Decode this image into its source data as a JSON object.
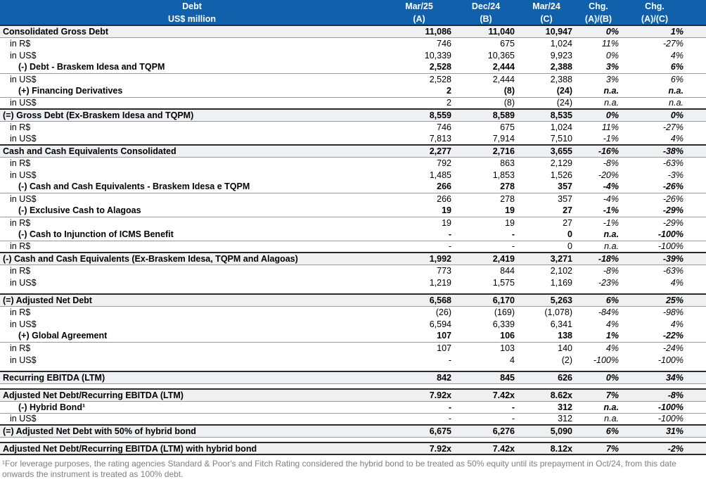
{
  "colors": {
    "header_blue": "#1060AC",
    "header_text": "#FFFFFF",
    "section_row_bg": "#EFF0F2",
    "dark_border": "#2B2B2B",
    "light_border": "#9A9A9A",
    "footnote_text": "#7F7F7F"
  },
  "header": {
    "label_line1": "Debt",
    "label_line2": "US$ million",
    "columns": [
      {
        "line1": "Mar/25",
        "line2": "(A)"
      },
      {
        "line1": "Dec/24",
        "line2": "(B)"
      },
      {
        "line1": "Mar/24",
        "line2": "(C)"
      },
      {
        "line1": "Chg.",
        "line2": "(A)/(B)"
      },
      {
        "line1": "Chg.",
        "line2": "(A)/(C)"
      }
    ]
  },
  "rows": [
    {
      "type": "section",
      "label": "Consolidated Gross Debt",
      "a": "11,086",
      "b": "11,040",
      "c": "10,947",
      "chg_ab": "0%",
      "chg_ac": "1%"
    },
    {
      "type": "plain",
      "label": "in R$",
      "a": "746",
      "b": "675",
      "c": "1,024",
      "chg_ab": "11%",
      "chg_ac": "-27%"
    },
    {
      "type": "plain",
      "label": "in US$",
      "a": "10,339",
      "b": "10,365",
      "c": "9,923",
      "chg_ab": "0%",
      "chg_ac": "4%"
    },
    {
      "type": "subbold",
      "label": "(-) Debt - Braskem Idesa and TQPM",
      "a": "2,528",
      "b": "2,444",
      "c": "2,388",
      "chg_ab": "3%",
      "chg_ac": "6%"
    },
    {
      "type": "plain",
      "label": "in US$",
      "a": "2,528",
      "b": "2,444",
      "c": "2,388",
      "chg_ab": "3%",
      "chg_ac": "6%"
    },
    {
      "type": "subbold",
      "label": "(+) Financing Derivatives",
      "a": "2",
      "b": "(8)",
      "c": "(24)",
      "chg_ab": "n.a.",
      "chg_ac": "n.a."
    },
    {
      "type": "plain",
      "label": "in US$",
      "a": "2",
      "b": "(8)",
      "c": "(24)",
      "chg_ab": "n.a.",
      "chg_ac": "n.a."
    },
    {
      "type": "section",
      "label": "(=) Gross Debt (Ex-Braskem Idesa and TQPM)",
      "a": "8,559",
      "b": "8,589",
      "c": "8,535",
      "chg_ab": "0%",
      "chg_ac": "0%"
    },
    {
      "type": "plain",
      "label": "in R$",
      "a": "746",
      "b": "675",
      "c": "1,024",
      "chg_ab": "11%",
      "chg_ac": "-27%"
    },
    {
      "type": "plain",
      "label": "in US$",
      "a": "7,813",
      "b": "7,914",
      "c": "7,510",
      "chg_ab": "-1%",
      "chg_ac": "4%"
    },
    {
      "type": "section",
      "label": "Cash and Cash Equivalents Consolidated",
      "a": "2,277",
      "b": "2,716",
      "c": "3,655",
      "chg_ab": "-16%",
      "chg_ac": "-38%"
    },
    {
      "type": "plain",
      "label": "in R$",
      "a": "792",
      "b": "863",
      "c": "2,129",
      "chg_ab": "-8%",
      "chg_ac": "-63%"
    },
    {
      "type": "plain",
      "label": "in US$",
      "a": "1,485",
      "b": "1,853",
      "c": "1,526",
      "chg_ab": "-20%",
      "chg_ac": "-3%"
    },
    {
      "type": "subbold",
      "label": "(-) Cash and Cash Equivalents - Braskem Idesa e TQPM",
      "a": "266",
      "b": "278",
      "c": "357",
      "chg_ab": "-4%",
      "chg_ac": "-26%"
    },
    {
      "type": "plain",
      "label": "in US$",
      "a": "266",
      "b": "278",
      "c": "357",
      "chg_ab": "-4%",
      "chg_ac": "-26%"
    },
    {
      "type": "subbold",
      "label": "(-) Exclusive Cash to Alagoas",
      "a": "19",
      "b": "19",
      "c": "27",
      "chg_ab": "-1%",
      "chg_ac": "-29%"
    },
    {
      "type": "plain",
      "label": "in R$",
      "a": "19",
      "b": "19",
      "c": "27",
      "chg_ab": "-1%",
      "chg_ac": "-29%"
    },
    {
      "type": "subbold",
      "label": "(-) Cash to Injunction of ICMS Benefit",
      "a": "-",
      "b": "-",
      "c": "0",
      "chg_ab": "n.a.",
      "chg_ac": "-100%"
    },
    {
      "type": "plain",
      "label": "in R$",
      "a": "-",
      "b": "-",
      "c": "0",
      "chg_ab": "n.a.",
      "chg_ac": "-100%"
    },
    {
      "type": "section",
      "label": "(-) Cash and Cash Equivalents (Ex-Braskem Idesa, TQPM and Alagoas)",
      "a": "1,992",
      "b": "2,419",
      "c": "3,271",
      "chg_ab": "-18%",
      "chg_ac": "-39%"
    },
    {
      "type": "plain",
      "label": "in R$",
      "a": "773",
      "b": "844",
      "c": "2,102",
      "chg_ab": "-8%",
      "chg_ac": "-63%"
    },
    {
      "type": "plain",
      "label": "in US$",
      "a": "1,219",
      "b": "1,575",
      "c": "1,169",
      "chg_ab": "-23%",
      "chg_ac": "4%"
    },
    {
      "type": "spacer"
    },
    {
      "type": "section",
      "label": "(=) Adjusted Net Debt",
      "a": "6,568",
      "b": "6,170",
      "c": "5,263",
      "chg_ab": "6%",
      "chg_ac": "25%"
    },
    {
      "type": "plain",
      "label": "in R$",
      "a": "(26)",
      "b": "(169)",
      "c": "(1,078)",
      "chg_ab": "-84%",
      "chg_ac": "-98%"
    },
    {
      "type": "plain",
      "label": "in US$",
      "a": "6,594",
      "b": "6,339",
      "c": "6,341",
      "chg_ab": "4%",
      "chg_ac": "4%"
    },
    {
      "type": "subbold",
      "label": "(+) Global Agreement",
      "a": "107",
      "b": "106",
      "c": "138",
      "chg_ab": "1%",
      "chg_ac": "-22%"
    },
    {
      "type": "plain",
      "label": "in R$",
      "a": "107",
      "b": "103",
      "c": "140",
      "chg_ab": "4%",
      "chg_ac": "-24%"
    },
    {
      "type": "plain",
      "label": "in US$",
      "a": "-",
      "b": "4",
      "c": "(2)",
      "chg_ab": "-100%",
      "chg_ac": "-100%"
    },
    {
      "type": "spacer"
    },
    {
      "type": "section",
      "label": "Recurring EBITDA (LTM)",
      "a": "842",
      "b": "845",
      "c": "626",
      "chg_ab": "0%",
      "chg_ac": "34%"
    },
    {
      "type": "spacer"
    },
    {
      "type": "section",
      "label": "Adjusted Net Debt/Recurring EBITDA (LTM)",
      "a": "7.92x",
      "b": "7.42x",
      "c": "8.62x",
      "chg_ab": "7%",
      "chg_ac": "-8%"
    },
    {
      "type": "subbold",
      "label": "(-) Hybrid Bond¹",
      "a": "-",
      "b": "-",
      "c": "312",
      "chg_ab": "n.a.",
      "chg_ac": "-100%"
    },
    {
      "type": "plain",
      "label": "in US$",
      "a": "-",
      "b": "-",
      "c": "312",
      "chg_ab": "n.a.",
      "chg_ac": "-100%"
    },
    {
      "type": "section",
      "label": "(=) Adjusted Net Debt with 50% of hybrid bond",
      "a": "6,675",
      "b": "6,276",
      "c": "5,090",
      "chg_ab": "6%",
      "chg_ac": "31%"
    },
    {
      "type": "spacer"
    },
    {
      "type": "section",
      "last": true,
      "label": "Adjusted Net Debt/Recurring EBITDA (LTM) with hybrid bond",
      "a": "7.92x",
      "b": "7.42x",
      "c": "8.12x",
      "chg_ab": "7%",
      "chg_ac": "-2%"
    }
  ],
  "footnote": "¹For leverage purposes, the rating agencies Standard & Poor's and Fitch Rating considered the hybrid bond to be treated as 50% equity until its prepayment in Oct/24, from this date onwards the instrument is treated as 100% debt."
}
